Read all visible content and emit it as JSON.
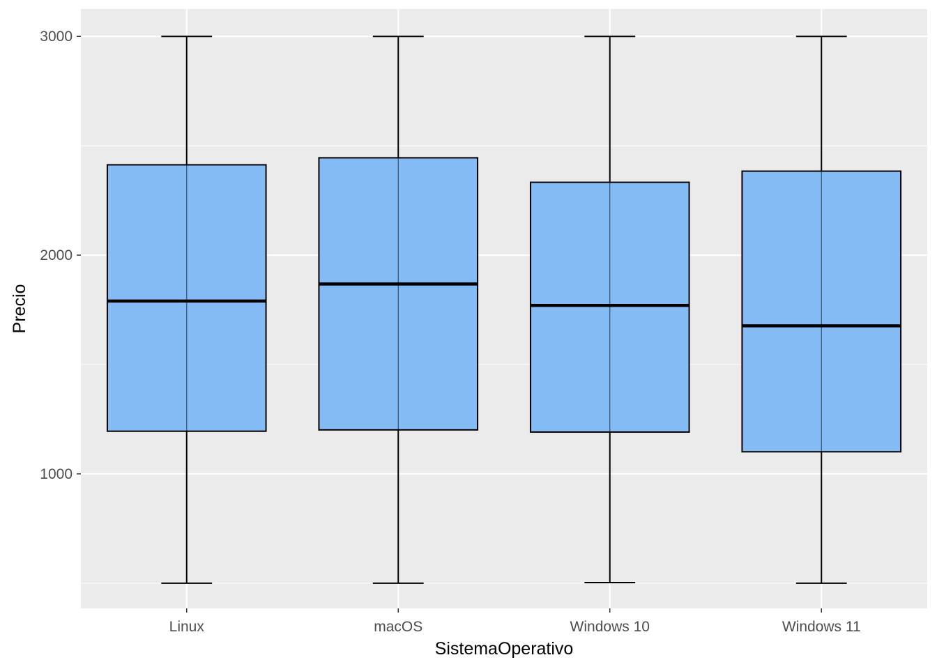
{
  "chart_data": {
    "type": "boxplot",
    "xlabel": "SistemaOperativo",
    "ylabel": "Precio",
    "categories": [
      "Linux",
      "macOS",
      "Windows 10",
      "Windows 11"
    ],
    "boxes": [
      {
        "category": "Linux",
        "min": 500,
        "q1": 1195,
        "median": 1790,
        "q3": 2413,
        "max": 3000
      },
      {
        "category": "macOS",
        "min": 500,
        "q1": 1201,
        "median": 1868,
        "q3": 2445,
        "max": 3000
      },
      {
        "category": "Windows 10",
        "min": 503,
        "q1": 1191,
        "median": 1770,
        "q3": 2333,
        "max": 3000
      },
      {
        "category": "Windows 11",
        "min": 500,
        "q1": 1101,
        "median": 1677,
        "q3": 2384,
        "max": 3000
      }
    ],
    "yticks": [
      1000,
      2000,
      3000
    ],
    "yminor": [
      500,
      1500,
      2500
    ],
    "ylim": [
      385,
      3125
    ],
    "grid": true,
    "legend": "none",
    "colors": {
      "panel": "#ebebeb",
      "grid": "#ffffff",
      "box_fill": "#84bbf5",
      "box_stroke": "#000000",
      "tick_text": "#4d4d4d"
    }
  }
}
